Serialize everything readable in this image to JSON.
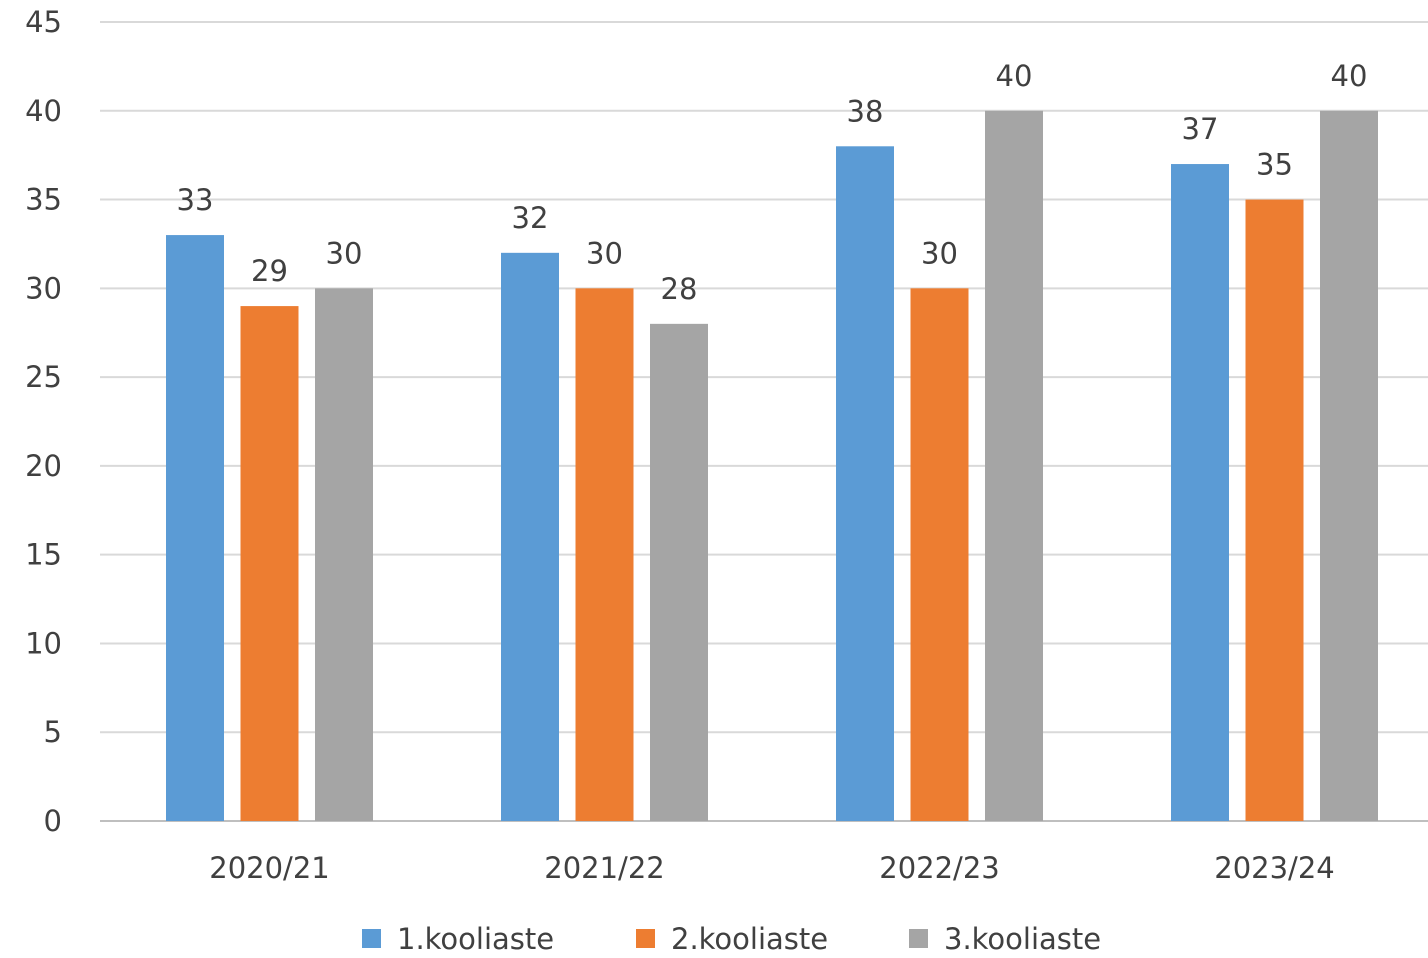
{
  "chart_data": {
    "type": "bar",
    "categories": [
      "2020/21",
      "2021/22",
      "2022/23",
      "2023/24"
    ],
    "series": [
      {
        "name": "1.kooliaste",
        "color": "#5b9bd5",
        "values": [
          33,
          32,
          38,
          37
        ]
      },
      {
        "name": "2.kooliaste",
        "color": "#ed7d31",
        "values": [
          29,
          30,
          30,
          35
        ]
      },
      {
        "name": "3.kooliaste",
        "color": "#a5a5a5",
        "values": [
          30,
          28,
          40,
          40
        ]
      }
    ],
    "ylim": [
      0,
      45
    ],
    "yticks": [
      0,
      5,
      10,
      15,
      20,
      25,
      30,
      35,
      40,
      45
    ],
    "title": "",
    "xlabel": "",
    "ylabel": "",
    "grid": true,
    "legend_position": "bottom",
    "data_labels": true
  }
}
